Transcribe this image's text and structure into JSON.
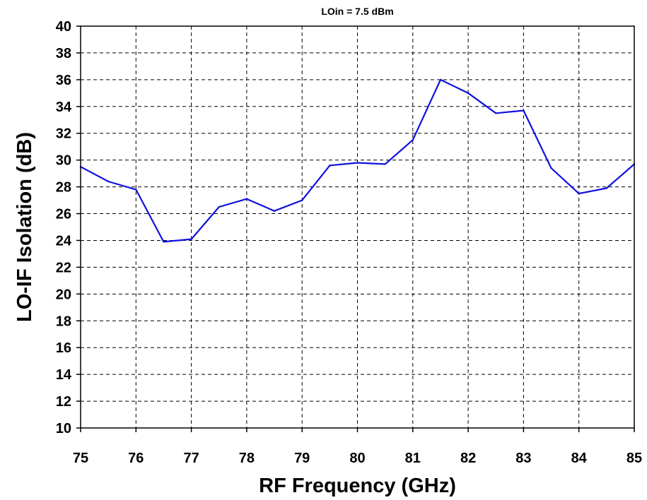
{
  "chart_data": {
    "type": "line",
    "title": "LOin = 7.5 dBm",
    "xlabel": "RF Frequency (GHz)",
    "ylabel": "LO-IF Isolation (dB)",
    "xlim": [
      75,
      85
    ],
    "ylim": [
      10,
      40
    ],
    "xticks": [
      "75",
      "76",
      "77",
      "78",
      "79",
      "80",
      "81",
      "82",
      "83",
      "84",
      "85"
    ],
    "yticks": [
      "10",
      "12",
      "14",
      "16",
      "18",
      "20",
      "22",
      "24",
      "26",
      "28",
      "30",
      "32",
      "34",
      "36",
      "38",
      "40"
    ],
    "grid": true,
    "series": [
      {
        "color": "#1010e0",
        "x": [
          75,
          75.5,
          76,
          76.5,
          77,
          77.5,
          78,
          78.5,
          79,
          79.5,
          80,
          80.5,
          81,
          81.5,
          82,
          82.5,
          83,
          83.5,
          84,
          84.5,
          85
        ],
        "y": [
          29.5,
          28.4,
          27.8,
          23.9,
          24.1,
          26.5,
          27.1,
          26.2,
          27.0,
          29.6,
          29.8,
          29.7,
          31.5,
          36.0,
          35.0,
          33.5,
          33.7,
          29.4,
          27.5,
          27.9,
          29.7
        ]
      }
    ]
  }
}
